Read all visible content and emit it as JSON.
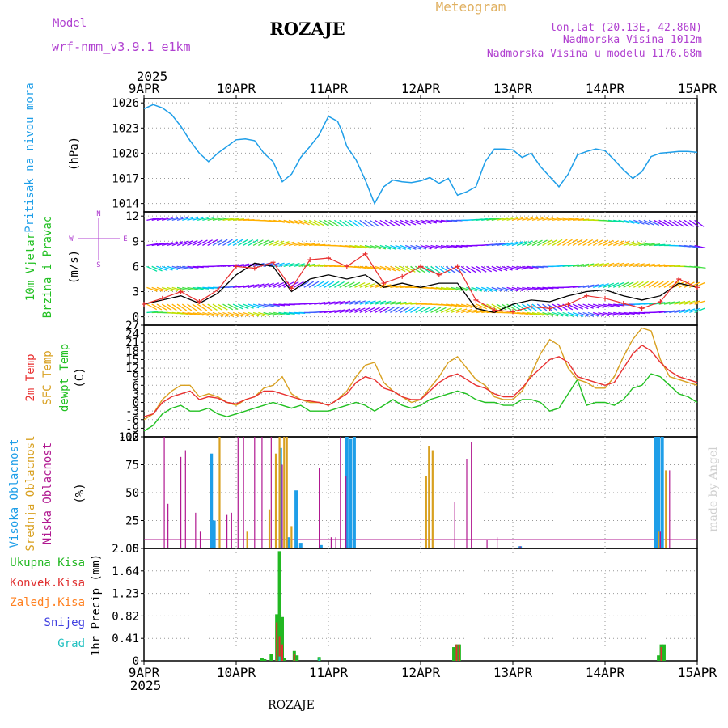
{
  "header": {
    "model_label": "Model",
    "model_name": "wrf-nmm_v3.9.1 e1km",
    "station": "ROZAJE",
    "title": "Meteogram",
    "coords": "lon,lat (20.13E, 42.86N)",
    "elev_real": "Nadmorska Visina 1012m",
    "elev_model": "Nadmorska Visina u modelu 1176.68m",
    "footer_station": "ROZAJE",
    "credit": "made by Angel"
  },
  "axis": {
    "year": "2025",
    "dates": [
      "9APR",
      "10APR",
      "11APR",
      "12APR",
      "13APR",
      "14APR",
      "15APR"
    ]
  },
  "colors": {
    "pressure": "#1e9ee8",
    "temp2m": "#e83030",
    "sfctemp": "#d8a020",
    "dewpt": "#22c022",
    "wind_obs": "#e83030",
    "wind_black": "#000000",
    "high_cloud": "#1e9ee8",
    "mid_cloud": "#d8a020",
    "low_cloud": "#b01890",
    "total_precip": "#22b822",
    "conv_precip": "#e03030",
    "frozen_precip": "#ff8020",
    "snow": "#4040e0",
    "hail": "#20c0c0",
    "label_purple": "#b040d0"
  },
  "panels": {
    "pressure": {
      "ylabel_line1": "Pritisak na nivou mora",
      "unit": "(hPa)"
    },
    "wind": {
      "ylabel_line1": "10m Vjetar",
      "ylabel_line2": "Brzina i Pravac",
      "unit": "(m/s)",
      "rose_n": "N",
      "rose_s": "S",
      "rose_w": "W",
      "rose_e": "E"
    },
    "temp": {
      "label_2m": "2m Temp",
      "label_sfc": "SFC Temp",
      "label_dew": "dewpt Temp",
      "unit": "(C)"
    },
    "cloud": {
      "label_high": "Visoka Oblacnost",
      "label_mid": "Srednja Oblacnost",
      "label_low": "Niska Oblacnost",
      "unit": "(%)"
    },
    "precip": {
      "legend_total": "Ukupna Kisa",
      "legend_conv": "Konvek.Kisa",
      "legend_frozen": "Zaledj.Kisa",
      "legend_snow": "Snijeg",
      "legend_hail": "Grad",
      "ylabel": "1hr Precip (mm)"
    }
  },
  "chart_data": [
    {
      "type": "line",
      "name": "pressure",
      "ylabel": "(hPa)",
      "ylim": [
        1013,
        1026.5
      ],
      "yticks": [
        1014,
        1017,
        1020,
        1023,
        1026
      ],
      "grid": true,
      "x_days": [
        0.0,
        0.1,
        0.2,
        0.3,
        0.4,
        0.5,
        0.6,
        0.7,
        0.8,
        0.9,
        1.0,
        1.1,
        1.2,
        1.3,
        1.4,
        1.5,
        1.6,
        1.7,
        1.8,
        1.9,
        2.0,
        2.1,
        2.15,
        2.2,
        2.3,
        2.4,
        2.5,
        2.6,
        2.7,
        2.8,
        2.9,
        3.0,
        3.1,
        3.2,
        3.3,
        3.4,
        3.5,
        3.6,
        3.7,
        3.8,
        3.9,
        4.0,
        4.1,
        4.2,
        4.3,
        4.4,
        4.5,
        4.6,
        4.7,
        4.8,
        4.9,
        5.0,
        5.1,
        5.2,
        5.3,
        5.4,
        5.5,
        5.6,
        5.7,
        5.8,
        5.9,
        6.0
      ],
      "values": [
        1025.3,
        1025.8,
        1025.4,
        1024.6,
        1023.2,
        1021.5,
        1020.0,
        1019.0,
        1020.0,
        1020.8,
        1021.6,
        1021.7,
        1021.5,
        1020.0,
        1019.0,
        1016.6,
        1017.5,
        1019.5,
        1020.8,
        1022.2,
        1024.4,
        1023.8,
        1022.5,
        1020.8,
        1019.2,
        1016.8,
        1014.0,
        1016.0,
        1016.8,
        1016.6,
        1016.5,
        1016.7,
        1017.1,
        1016.4,
        1017.0,
        1015.0,
        1015.4,
        1016.0,
        1019.0,
        1020.5,
        1020.5,
        1020.4,
        1019.5,
        1020.0,
        1018.4,
        1017.2,
        1016.0,
        1017.5,
        1019.8,
        1020.2,
        1020.5,
        1020.3,
        1019.2,
        1018.0,
        1017.0,
        1017.8,
        1019.6,
        1020.0,
        1020.1,
        1020.2,
        1020.2,
        1020.1
      ]
    },
    {
      "type": "line",
      "name": "10m wind",
      "ylabel": "(m/s)",
      "ylim": [
        -1,
        12.5
      ],
      "yticks": [
        0,
        3,
        6,
        9,
        12
      ],
      "grid": true,
      "x_days": [
        0.0,
        0.2,
        0.4,
        0.6,
        0.8,
        1.0,
        1.2,
        1.4,
        1.6,
        1.8,
        2.0,
        2.2,
        2.4,
        2.6,
        2.8,
        3.0,
        3.2,
        3.4,
        3.6,
        3.8,
        4.0,
        4.2,
        4.4,
        4.6,
        4.8,
        5.0,
        5.2,
        5.4,
        5.6,
        5.8,
        6.0
      ],
      "series": [
        {
          "name": "red",
          "values": [
            1.5,
            2.2,
            3.0,
            1.8,
            3.2,
            6.0,
            5.8,
            6.5,
            3.4,
            6.8,
            7.0,
            6.0,
            7.5,
            4.0,
            4.8,
            6.0,
            5.0,
            6.0,
            2.0,
            0.8,
            0.6,
            1.2,
            1.0,
            1.5,
            2.5,
            2.2,
            1.6,
            1.0,
            1.8,
            4.5,
            3.5
          ]
        },
        {
          "name": "black",
          "values": [
            1.5,
            2.0,
            2.5,
            1.6,
            2.8,
            5.0,
            6.4,
            6.0,
            3.0,
            4.5,
            5.0,
            4.5,
            5.0,
            3.5,
            4.0,
            3.5,
            4.0,
            4.0,
            1.0,
            0.5,
            1.5,
            2.0,
            1.8,
            2.5,
            3.0,
            3.2,
            2.5,
            2.0,
            2.5,
            4.0,
            3.5
          ]
        }
      ]
    },
    {
      "type": "line",
      "name": "temperature",
      "ylabel": "(C)",
      "ylim": [
        -12,
        27
      ],
      "yticks": [
        -12,
        -9,
        -6,
        -3,
        0,
        3,
        6,
        9,
        12,
        15,
        18,
        21,
        24,
        27
      ],
      "grid": true,
      "x_days": [
        0.0,
        0.1,
        0.2,
        0.3,
        0.4,
        0.5,
        0.6,
        0.7,
        0.8,
        0.9,
        1.0,
        1.1,
        1.2,
        1.3,
        1.4,
        1.5,
        1.6,
        1.7,
        1.8,
        1.9,
        2.0,
        2.1,
        2.2,
        2.3,
        2.4,
        2.5,
        2.6,
        2.7,
        2.8,
        2.9,
        3.0,
        3.1,
        3.2,
        3.3,
        3.4,
        3.5,
        3.6,
        3.7,
        3.8,
        3.9,
        4.0,
        4.1,
        4.2,
        4.3,
        4.4,
        4.5,
        4.6,
        4.7,
        4.8,
        4.9,
        5.0,
        5.1,
        5.2,
        5.3,
        5.4,
        5.5,
        5.6,
        5.7,
        5.8,
        5.9,
        6.0
      ],
      "series": [
        {
          "name": "2m Temp",
          "values": [
            -5,
            -4,
            0,
            2,
            3,
            4,
            1,
            2,
            1.5,
            0,
            -0.5,
            1,
            2,
            4,
            4,
            3,
            2,
            1,
            0.5,
            0,
            -1,
            1,
            3,
            7,
            9,
            8,
            5,
            4,
            2,
            1,
            1,
            4,
            7,
            9,
            10,
            8,
            6,
            5,
            3,
            2,
            2,
            5,
            9,
            12,
            15,
            16,
            14,
            9,
            8,
            7,
            6,
            7,
            12,
            17,
            20,
            18,
            14,
            11,
            9,
            8,
            7
          ]
        },
        {
          "name": "SFC Temp",
          "values": [
            -6,
            -4,
            1,
            4,
            6,
            6,
            2,
            3,
            2,
            0,
            -1,
            1,
            2,
            5,
            6,
            9,
            3,
            1,
            0,
            0,
            -1,
            1,
            4,
            9,
            13,
            14,
            7,
            4,
            2,
            0,
            1,
            5,
            9,
            14,
            16,
            12,
            8,
            6,
            2,
            1,
            1,
            4,
            10,
            17,
            22,
            20,
            12,
            8,
            7,
            5,
            5,
            9,
            16,
            22,
            26,
            25,
            15,
            9,
            8,
            7,
            6
          ]
        },
        {
          "name": "dewpt Temp",
          "values": [
            -10,
            -8,
            -4,
            -2,
            -1,
            -3,
            -3,
            -2,
            -4,
            -5,
            -4,
            -3,
            -2,
            -1,
            0,
            -1,
            -2,
            -1,
            -3,
            -3,
            -3,
            -2,
            -1,
            0,
            -1,
            -3,
            -1,
            1,
            -1,
            -2,
            -1,
            1,
            2,
            3,
            4,
            3,
            1,
            0,
            0,
            -1,
            -1,
            1,
            1,
            0,
            -3,
            -2,
            3,
            8,
            -1,
            0,
            0,
            -1,
            1,
            5,
            6,
            10,
            9,
            6,
            3,
            2,
            0
          ]
        }
      ]
    },
    {
      "type": "bar",
      "name": "cloud cover",
      "ylabel": "(%)",
      "ylim": [
        0,
        100
      ],
      "yticks": [
        0,
        25,
        50,
        75,
        100
      ],
      "grid": true,
      "series": [
        {
          "name": "Visoka Oblacnost",
          "x_days": [
            0.73,
            0.76,
            1.48,
            1.57,
            1.65,
            1.7,
            1.92,
            2.2,
            2.24,
            2.28,
            4.08,
            5.55,
            5.58,
            5.62
          ],
          "values": [
            85,
            25,
            90,
            10,
            52,
            5,
            3,
            100,
            98,
            100,
            2,
            100,
            100,
            100
          ]
        },
        {
          "name": "Srednja Oblacnost",
          "x_days": [
            0.82,
            1.12,
            1.36,
            1.43,
            1.47,
            1.52,
            1.55,
            1.6,
            3.06,
            3.09,
            3.13,
            5.58,
            5.66
          ],
          "values": [
            100,
            15,
            35,
            85,
            100,
            100,
            100,
            20,
            65,
            92,
            88,
            15,
            70
          ]
        },
        {
          "name": "Niska Oblacnost",
          "x_days": [
            0.22,
            0.26,
            0.4,
            0.45,
            0.56,
            0.61,
            0.9,
            0.95,
            1.02,
            1.08,
            1.2,
            1.28,
            1.38,
            1.5,
            1.9,
            2.03,
            2.08,
            2.13,
            2.19,
            3.37,
            3.5,
            3.55,
            3.72,
            3.83,
            4.08,
            5.6,
            5.7
          ],
          "values": [
            100,
            40,
            82,
            88,
            32,
            15,
            30,
            32,
            100,
            100,
            100,
            100,
            100,
            75,
            72,
            10,
            10,
            100,
            65,
            42,
            80,
            95,
            8,
            10,
            2,
            15,
            70
          ]
        }
      ]
    },
    {
      "type": "bar",
      "name": "1hr precipitation",
      "ylabel": "1hr Precip (mm)",
      "ylim": [
        0,
        2.05
      ],
      "yticks": [
        0,
        0.41,
        0.82,
        1.23,
        1.64,
        2.05
      ],
      "grid": true,
      "series": [
        {
          "name": "Ukupna Kisa",
          "x_days": [
            1.28,
            1.31,
            1.38,
            1.44,
            1.47,
            1.5,
            1.52,
            1.63,
            1.66,
            1.9,
            3.36,
            3.39,
            3.42,
            5.58,
            5.61,
            5.64
          ],
          "values": [
            0.05,
            0.03,
            0.12,
            0.85,
            2.0,
            0.8,
            0.05,
            0.18,
            0.1,
            0.07,
            0.25,
            0.3,
            0.3,
            0.1,
            0.3,
            0.3
          ]
        },
        {
          "name": "Konvek.Kisa",
          "x_days": [
            1.44,
            1.47,
            1.5,
            1.63,
            3.39,
            3.42,
            5.61
          ],
          "values": [
            0.7,
            0.45,
            0.3,
            0.12,
            0.3,
            0.3,
            0.25
          ]
        },
        {
          "name": "Grad",
          "x_days": [
            1.47,
            1.9
          ],
          "values": [
            0.08,
            0.04
          ]
        }
      ]
    }
  ]
}
